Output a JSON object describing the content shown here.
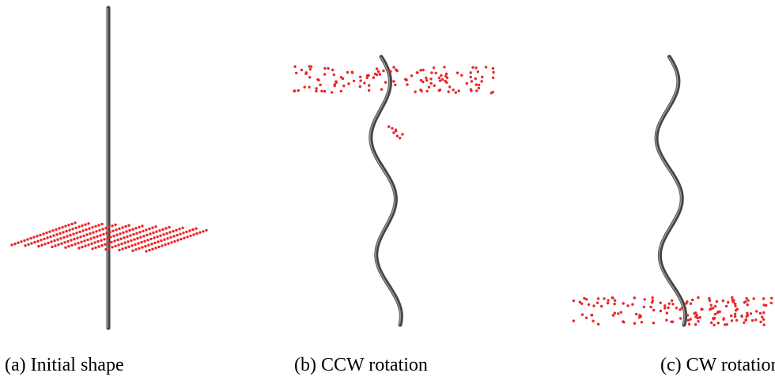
{
  "captions": [
    "(a) Initial shape",
    "(b) CCW rotation",
    "(c) CW rotation"
  ]
}
